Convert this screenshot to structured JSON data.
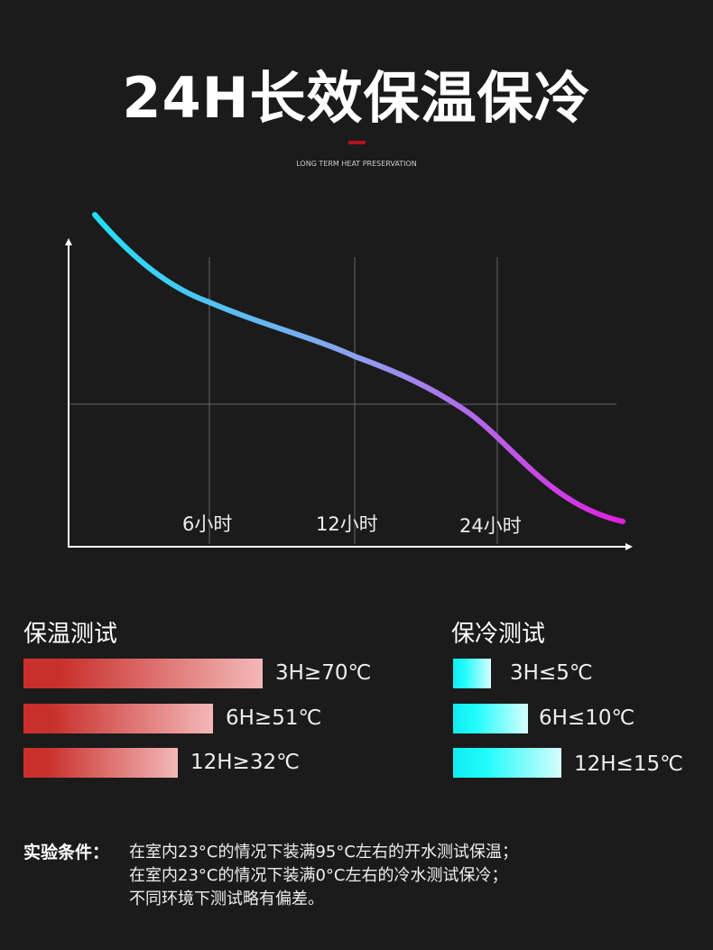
{
  "header": {
    "title": "24H长效保温保冷",
    "subtitle": "LONG TERM HEAT PRESERVATION",
    "accent": "#b0141e"
  },
  "curve": {
    "x_ticks": [
      "6小时",
      "12小时",
      "24小时"
    ],
    "gradient": [
      "#1fe0f5",
      "#8fa0f0",
      "#e020e0"
    ]
  },
  "hot_test": {
    "title": "保温测试",
    "items": [
      {
        "label": "3H≥70℃",
        "value_c": 70
      },
      {
        "label": "6H≥51℃",
        "value_c": 51
      },
      {
        "label": "12H≥32℃",
        "value_c": 32
      }
    ],
    "color": "#c9302c"
  },
  "cold_test": {
    "title": "保冷测试",
    "items": [
      {
        "label": "3H≤5℃",
        "value_c": 5
      },
      {
        "label": "6H≤10℃",
        "value_c": 10
      },
      {
        "label": "12H≤15℃",
        "value_c": 15
      }
    ],
    "color": "#10ecf1"
  },
  "conditions": {
    "label": "实验条件：",
    "lines": [
      "在室内23°C的情况下装满95°C左右的开水测试保温；",
      "在室内23°C的情况下装满0°C左右的冷水测试保冷；",
      "不同环境下测试略有偏差。"
    ]
  }
}
